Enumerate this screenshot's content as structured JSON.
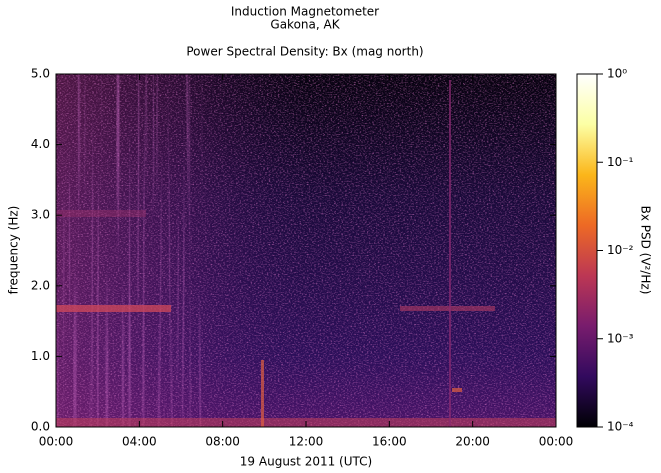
{
  "chart_data": {
    "type": "spectrogram",
    "title": [
      "Induction Magnetometer",
      "Gakona, AK"
    ],
    "subtitle": "Power Spectral Density: Bx (mag north)",
    "x_label": "19 August 2011 (UTC)",
    "y_label": "frequency (Hz)",
    "colorbar_label": "Bx PSD (V²/Hz)",
    "xlim": [
      0,
      24
    ],
    "xticks": [
      {
        "value": 0,
        "label": "00:00"
      },
      {
        "value": 4,
        "label": "04:00"
      },
      {
        "value": 8,
        "label": "08:00"
      },
      {
        "value": 12,
        "label": "12:00"
      },
      {
        "value": 16,
        "label": "16:00"
      },
      {
        "value": 20,
        "label": "20:00"
      },
      {
        "value": 24,
        "label": "00:00"
      }
    ],
    "ylim": [
      0,
      5
    ],
    "yticks": [
      {
        "value": 0,
        "label": "0.0"
      },
      {
        "value": 1,
        "label": "1.0"
      },
      {
        "value": 2,
        "label": "2.0"
      },
      {
        "value": 3,
        "label": "3.0"
      },
      {
        "value": 4,
        "label": "4.0"
      },
      {
        "value": 5,
        "label": "5.0"
      }
    ],
    "color_scale": "log",
    "clim": [
      0.0001,
      1
    ],
    "cticks": [
      {
        "value": 0.0001,
        "label": "10⁻⁴"
      },
      {
        "value": 0.001,
        "label": "10⁻³"
      },
      {
        "value": 0.01,
        "label": "10⁻²"
      },
      {
        "value": 0.1,
        "label": "10⁻¹"
      },
      {
        "value": 1,
        "label": "10⁰"
      }
    ],
    "colormap": [
      "#000004",
      "#320a5e",
      "#781c6d",
      "#bc3754",
      "#ed6925",
      "#fbb61a",
      "#fcffa4",
      "#ffffff"
    ]
  }
}
